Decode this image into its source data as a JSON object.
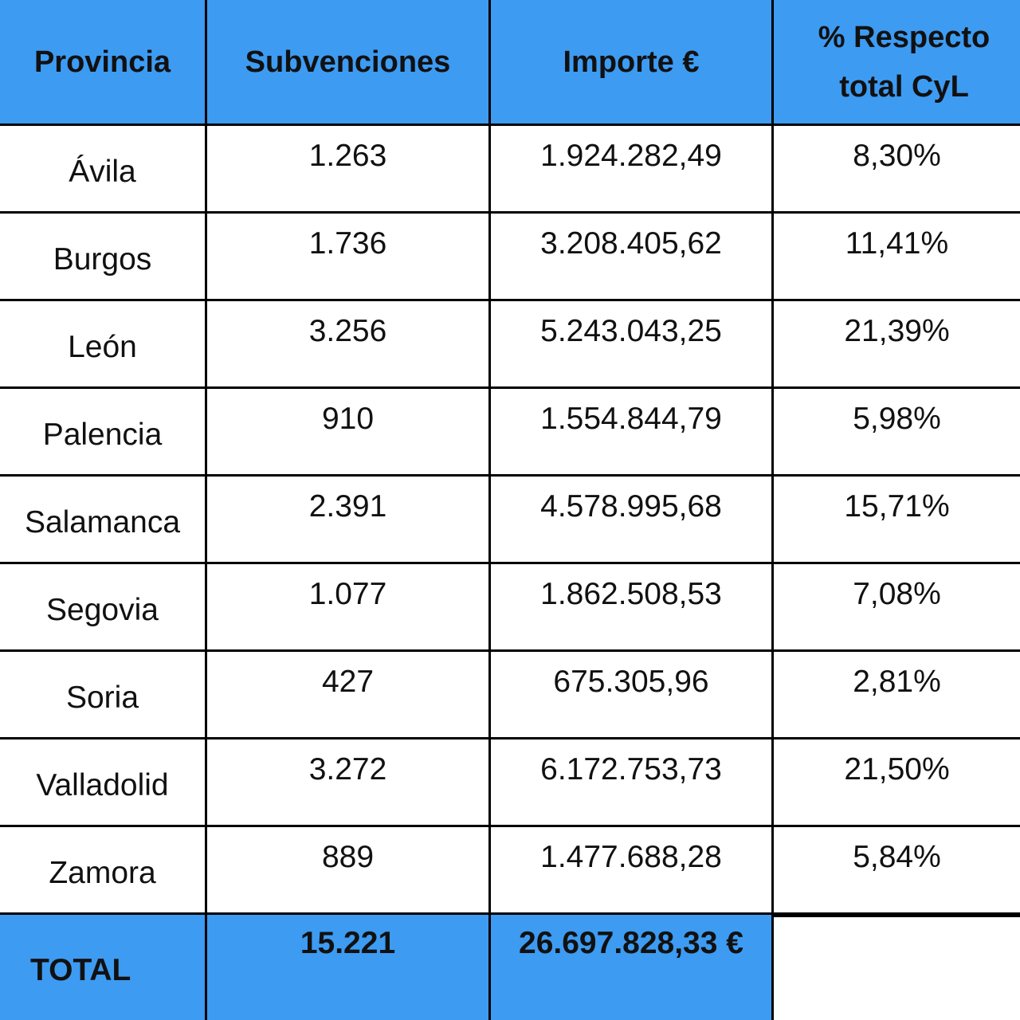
{
  "table": {
    "headers": [
      "Provincia",
      "Subvenciones",
      "Importe €",
      "% Respecto total CyL"
    ],
    "rows": [
      {
        "provincia": "Ávila",
        "subvenciones": "1.263",
        "importe": "1.924.282,49",
        "porcentaje": "8,30%"
      },
      {
        "provincia": "Burgos",
        "subvenciones": "1.736",
        "importe": "3.208.405,62",
        "porcentaje": "11,41%"
      },
      {
        "provincia": "León",
        "subvenciones": "3.256",
        "importe": "5.243.043,25",
        "porcentaje": "21,39%"
      },
      {
        "provincia": "Palencia",
        "subvenciones": "910",
        "importe": "1.554.844,79",
        "porcentaje": "5,98%"
      },
      {
        "provincia": "Salamanca",
        "subvenciones": "2.391",
        "importe": "4.578.995,68",
        "porcentaje": "15,71%"
      },
      {
        "provincia": "Segovia",
        "subvenciones": "1.077",
        "importe": "1.862.508,53",
        "porcentaje": "7,08%"
      },
      {
        "provincia": "Soria",
        "subvenciones": "427",
        "importe": "675.305,96",
        "porcentaje": "2,81%"
      },
      {
        "provincia": "Valladolid",
        "subvenciones": "3.272",
        "importe": "6.172.753,73",
        "porcentaje": "21,50%"
      },
      {
        "provincia": "Zamora",
        "subvenciones": "889",
        "importe": "1.477.688,28",
        "porcentaje": "5,84%"
      }
    ],
    "total": {
      "label": "TOTAL",
      "subvenciones": "15.221",
      "importe": "26.697.828,33 €",
      "porcentaje": ""
    }
  },
  "colors": {
    "header_bg": "#3d9bf2",
    "cell_bg": "#ffffff",
    "border": "#000000",
    "text": "#111111"
  }
}
